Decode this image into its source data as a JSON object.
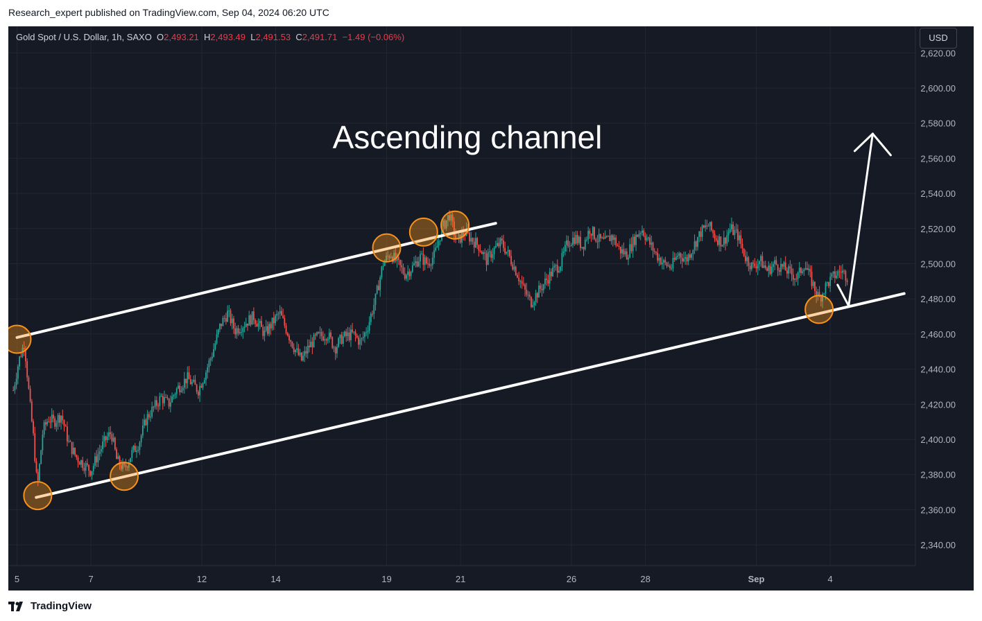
{
  "header": {
    "publish_line": "Research_expert published on TradingView.com, Sep 04, 2024 06:20 UTC"
  },
  "legend": {
    "symbol": "Gold Spot / U.S. Dollar, 1h, SAXO",
    "o_label": "O",
    "o": "2,493.21",
    "h_label": "H",
    "h": "2,493.49",
    "l_label": "L",
    "l": "2,491.53",
    "c_label": "C",
    "c": "2,491.71",
    "change": "−1.49 (−0.06%)"
  },
  "currency_button": "USD",
  "footer": {
    "brand": "TradingView"
  },
  "colors": {
    "background": "#161a25",
    "up": "#26a69a",
    "down": "#ef5350",
    "channel": "#ffffff",
    "marker": "#f7931a"
  },
  "chart_data": {
    "type": "candlestick",
    "symbol": "Gold Spot / U.S. Dollar",
    "interval": "1h",
    "annotation": "Ascending channel",
    "ylim": [
      2330,
      2630
    ],
    "y_ticks": [
      {
        "v": 2340,
        "label": "2,340.00"
      },
      {
        "v": 2360,
        "label": "2,360.00"
      },
      {
        "v": 2380,
        "label": "2,380.00"
      },
      {
        "v": 2400,
        "label": "2,400.00"
      },
      {
        "v": 2420,
        "label": "2,420.00"
      },
      {
        "v": 2440,
        "label": "2,440.00"
      },
      {
        "v": 2460,
        "label": "2,460.00"
      },
      {
        "v": 2480,
        "label": "2,480.00"
      },
      {
        "v": 2500,
        "label": "2,500.00"
      },
      {
        "v": 2520,
        "label": "2,520.00"
      },
      {
        "v": 2540,
        "label": "2,540.00"
      },
      {
        "v": 2560,
        "label": "2,560.00"
      },
      {
        "v": 2580,
        "label": "2,580.00"
      },
      {
        "v": 2600,
        "label": "2,600.00"
      },
      {
        "v": 2620,
        "label": "2,620.00"
      }
    ],
    "x_ticks": [
      {
        "t": 0,
        "label": "5",
        "bold": false
      },
      {
        "t": 2,
        "label": "7",
        "bold": false
      },
      {
        "t": 5,
        "label": "12",
        "bold": false
      },
      {
        "t": 7,
        "label": "14",
        "bold": false
      },
      {
        "t": 10,
        "label": "19",
        "bold": false
      },
      {
        "t": 12,
        "label": "21",
        "bold": false
      },
      {
        "t": 15,
        "label": "26",
        "bold": false
      },
      {
        "t": 17,
        "label": "28",
        "bold": false
      },
      {
        "t": 20,
        "label": "Sep",
        "bold": true
      },
      {
        "t": 22,
        "label": "4",
        "bold": false
      }
    ],
    "x_range": [
      -0.12,
      24.2
    ],
    "price_path": [
      [
        -0.1,
        2428
      ],
      [
        0.05,
        2445
      ],
      [
        0.2,
        2455
      ],
      [
        0.35,
        2420
      ],
      [
        0.45,
        2400
      ],
      [
        0.55,
        2372
      ],
      [
        0.7,
        2405
      ],
      [
        0.85,
        2412
      ],
      [
        1.0,
        2410
      ],
      [
        1.2,
        2414
      ],
      [
        1.4,
        2398
      ],
      [
        1.6,
        2390
      ],
      [
        1.8,
        2386
      ],
      [
        2.0,
        2382
      ],
      [
        2.2,
        2392
      ],
      [
        2.4,
        2400
      ],
      [
        2.55,
        2404
      ],
      [
        2.7,
        2388
      ],
      [
        2.9,
        2383
      ],
      [
        3.1,
        2392
      ],
      [
        3.3,
        2398
      ],
      [
        3.5,
        2412
      ],
      [
        3.7,
        2418
      ],
      [
        3.9,
        2424
      ],
      [
        4.1,
        2420
      ],
      [
        4.3,
        2428
      ],
      [
        4.6,
        2435
      ],
      [
        4.9,
        2428
      ],
      [
        5.1,
        2438
      ],
      [
        5.3,
        2450
      ],
      [
        5.5,
        2465
      ],
      [
        5.7,
        2472
      ],
      [
        5.9,
        2462
      ],
      [
        6.1,
        2465
      ],
      [
        6.4,
        2470
      ],
      [
        6.7,
        2460
      ],
      [
        6.9,
        2466
      ],
      [
        7.1,
        2472
      ],
      [
        7.3,
        2462
      ],
      [
        7.5,
        2452
      ],
      [
        7.7,
        2445
      ],
      [
        7.9,
        2453
      ],
      [
        8.1,
        2458
      ],
      [
        8.4,
        2460
      ],
      [
        8.6,
        2452
      ],
      [
        8.8,
        2458
      ],
      [
        9.1,
        2460
      ],
      [
        9.3,
        2455
      ],
      [
        9.5,
        2465
      ],
      [
        9.7,
        2480
      ],
      [
        9.9,
        2500
      ],
      [
        10.1,
        2506
      ],
      [
        10.3,
        2500
      ],
      [
        10.5,
        2494
      ],
      [
        10.7,
        2498
      ],
      [
        10.9,
        2504
      ],
      [
        11.1,
        2500
      ],
      [
        11.3,
        2505
      ],
      [
        11.5,
        2520
      ],
      [
        11.7,
        2528
      ],
      [
        11.9,
        2512
      ],
      [
        12.1,
        2518
      ],
      [
        12.3,
        2514
      ],
      [
        12.5,
        2510
      ],
      [
        12.7,
        2502
      ],
      [
        12.9,
        2508
      ],
      [
        13.1,
        2512
      ],
      [
        13.3,
        2505
      ],
      [
        13.5,
        2496
      ],
      [
        13.7,
        2486
      ],
      [
        13.9,
        2478
      ],
      [
        14.1,
        2484
      ],
      [
        14.3,
        2490
      ],
      [
        14.5,
        2496
      ],
      [
        14.7,
        2500
      ],
      [
        14.9,
        2512
      ],
      [
        15.1,
        2515
      ],
      [
        15.3,
        2510
      ],
      [
        15.5,
        2520
      ],
      [
        15.7,
        2514
      ],
      [
        15.9,
        2512
      ],
      [
        16.1,
        2516
      ],
      [
        16.3,
        2508
      ],
      [
        16.5,
        2505
      ],
      [
        16.7,
        2514
      ],
      [
        16.9,
        2520
      ],
      [
        17.1,
        2512
      ],
      [
        17.3,
        2505
      ],
      [
        17.5,
        2500
      ],
      [
        17.7,
        2498
      ],
      [
        17.9,
        2506
      ],
      [
        18.1,
        2502
      ],
      [
        18.3,
        2510
      ],
      [
        18.5,
        2518
      ],
      [
        18.7,
        2522
      ],
      [
        18.9,
        2515
      ],
      [
        19.1,
        2512
      ],
      [
        19.3,
        2520
      ],
      [
        19.5,
        2516
      ],
      [
        19.7,
        2504
      ],
      [
        19.9,
        2498
      ],
      [
        20.1,
        2502
      ],
      [
        20.3,
        2496
      ],
      [
        20.5,
        2500
      ],
      [
        20.7,
        2498
      ],
      [
        20.9,
        2495
      ],
      [
        21.1,
        2492
      ],
      [
        21.3,
        2500
      ],
      [
        21.5,
        2490
      ],
      [
        21.7,
        2480
      ],
      [
        21.9,
        2488
      ],
      [
        22.1,
        2493
      ],
      [
        22.3,
        2496
      ],
      [
        22.5,
        2492
      ]
    ],
    "channel_lines": [
      {
        "name": "upper",
        "from": [
          0.0,
          2458
        ],
        "to": [
          11.2,
          2514.5
        ]
      },
      {
        "name": "upper-ext",
        "from": [
          11.2,
          2514.5
        ],
        "to": [
          12.95,
          2523
        ]
      },
      {
        "name": "lower",
        "from": [
          0.52,
          2367
        ],
        "to": [
          24.0,
          2483
        ]
      }
    ],
    "touch_points": [
      [
        0.0,
        2457
      ],
      [
        0.56,
        2368
      ],
      [
        2.9,
        2379
      ],
      [
        10.0,
        2509
      ],
      [
        11.0,
        2518
      ],
      [
        11.85,
        2522
      ],
      [
        21.7,
        2474
      ]
    ],
    "projection_arrow": {
      "from": [
        22.5,
        2476
      ],
      "to": [
        23.15,
        2574
      ],
      "return_from": [
        22.2,
        2488
      ]
    }
  }
}
